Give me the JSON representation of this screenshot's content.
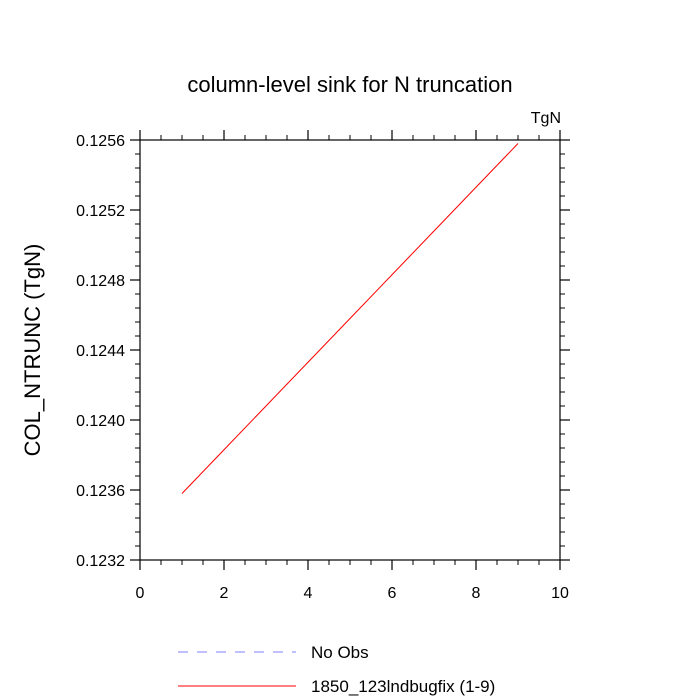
{
  "chart_data": {
    "type": "line",
    "title": "column-level sink for N truncation",
    "units_label": "TgN",
    "ylabel": "COL_NTRUNC  (TgN)",
    "xlabel": "",
    "xlim": [
      0,
      10
    ],
    "ylim": [
      0.1232,
      0.1256
    ],
    "x_ticks": [
      0,
      2,
      4,
      6,
      8,
      10
    ],
    "x_tick_labels": [
      "0",
      "2",
      "4",
      "6",
      "8",
      "10"
    ],
    "y_ticks": [
      0.1232,
      0.1236,
      0.124,
      0.1244,
      0.1248,
      0.1252,
      0.1256
    ],
    "y_tick_labels": [
      "0.1232",
      "0.1236",
      "0.1240",
      "0.1244",
      "0.1248",
      "0.1252",
      "0.1256"
    ],
    "grid": false,
    "legend_position": "bottom",
    "series": [
      {
        "name": "1850_123lndbugfix (1-9)",
        "color": "#ff0000",
        "style": "solid",
        "x": [
          1,
          2,
          3,
          4,
          5,
          6,
          7,
          8,
          9
        ],
        "y": [
          0.12358,
          0.12383,
          0.12408,
          0.12433,
          0.12458,
          0.12483,
          0.12508,
          0.12533,
          0.12558
        ]
      }
    ],
    "legend": [
      {
        "label": "No Obs",
        "color": "#8080ff",
        "style": "dashed"
      },
      {
        "label": "1850_123lndbugfix (1-9)",
        "color": "#ff0000",
        "style": "solid"
      }
    ]
  }
}
